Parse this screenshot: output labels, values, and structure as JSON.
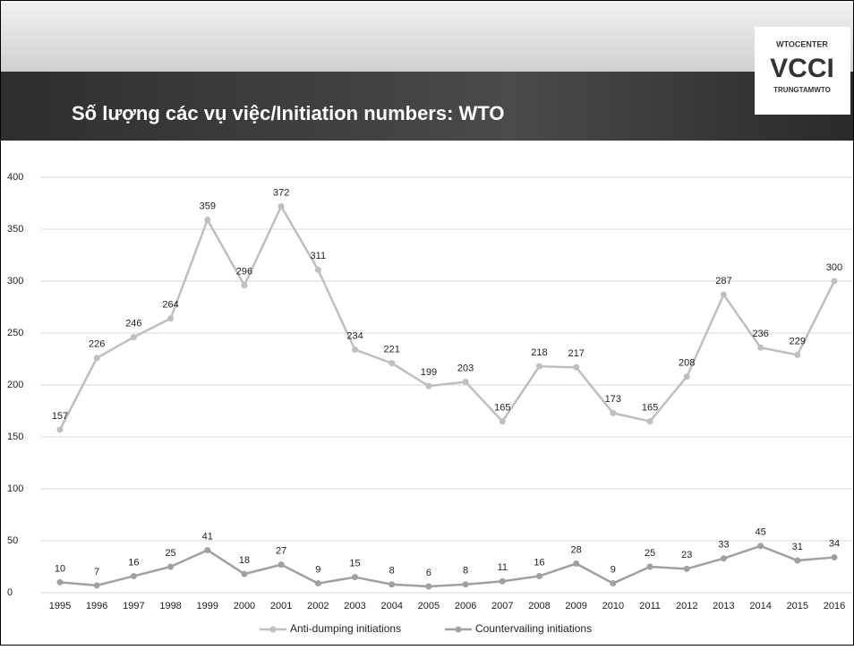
{
  "header": {
    "title": "Số lượng các vụ việc/Initiation numbers: WTO",
    "logo": [
      "WTOCENTER",
      "VCCI",
      "TRUNGTAMWTO"
    ]
  },
  "chart_data": {
    "type": "line",
    "categories": [
      "1995",
      "1996",
      "1997",
      "1998",
      "1999",
      "2000",
      "2001",
      "2002",
      "2003",
      "2004",
      "2005",
      "2006",
      "2007",
      "2008",
      "2009",
      "2010",
      "2011",
      "2012",
      "2013",
      "2014",
      "2015",
      "2016"
    ],
    "series": [
      {
        "name": "Anti-dumping initiations",
        "color": "#bfbfbf",
        "values": [
          157,
          226,
          246,
          264,
          359,
          296,
          372,
          311,
          234,
          221,
          199,
          203,
          165,
          218,
          217,
          173,
          165,
          208,
          287,
          236,
          229,
          300
        ]
      },
      {
        "name": "Countervailing initiations",
        "color": "#a0a0a0",
        "values": [
          10,
          7,
          16,
          25,
          41,
          18,
          27,
          9,
          15,
          8,
          6,
          8,
          11,
          16,
          28,
          9,
          25,
          23,
          33,
          45,
          31,
          34
        ]
      }
    ],
    "ylim": [
      0,
      400
    ],
    "yticks": [
      0,
      50,
      100,
      150,
      200,
      250,
      300,
      350,
      400
    ],
    "grid": true,
    "legend": "bottom"
  }
}
